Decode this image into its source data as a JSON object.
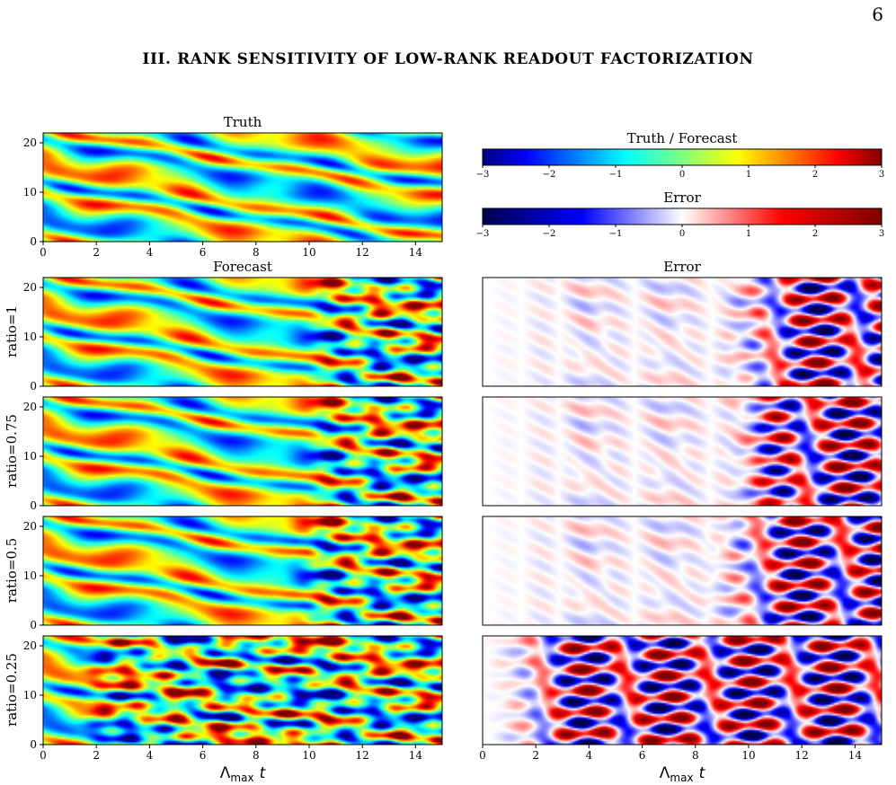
{
  "page_number": "6",
  "section_heading": "III.   RANK SENSITIVITY OF LOW-RANK READOUT FACTORIZATION",
  "figure": {
    "titles": {
      "truth": "Truth",
      "forecast": "Forecast",
      "error": "Error",
      "colorbar_tf": "Truth / Forecast",
      "colorbar_err": "Error"
    },
    "row_labels": [
      "ratio=1",
      "ratio=0.75",
      "ratio=0.5",
      "ratio=0.25"
    ],
    "xlabel": {
      "base": "Λ",
      "sub": "max",
      "var": "t"
    },
    "x_ticks": [
      0,
      2,
      4,
      6,
      8,
      10,
      12,
      14
    ],
    "y_ticks": [
      0,
      10,
      20
    ],
    "colorbar_ticks": [
      -3,
      -2,
      -1,
      0,
      1,
      2,
      3
    ],
    "colormaps": {
      "truth_forecast": "jet",
      "error": "seismic"
    }
  },
  "chart_data": [
    {
      "type": "heatmap",
      "panel": "Truth",
      "xlim": [
        0,
        15
      ],
      "ylim": [
        0,
        22
      ],
      "clim": [
        -3,
        3
      ]
    },
    {
      "type": "heatmap",
      "panel": "Forecast",
      "row": "ratio=1",
      "xlim": [
        0,
        15
      ],
      "ylim": [
        0,
        22
      ],
      "clim": [
        -3,
        3
      ]
    },
    {
      "type": "heatmap",
      "panel": "Error",
      "row": "ratio=1",
      "xlim": [
        0,
        15
      ],
      "ylim": [
        0,
        22
      ],
      "clim": [
        -3,
        3
      ],
      "large_error_from_t": 10.5
    },
    {
      "type": "heatmap",
      "panel": "Forecast",
      "row": "ratio=0.75",
      "xlim": [
        0,
        15
      ],
      "ylim": [
        0,
        22
      ],
      "clim": [
        -3,
        3
      ]
    },
    {
      "type": "heatmap",
      "panel": "Error",
      "row": "ratio=0.75",
      "xlim": [
        0,
        15
      ],
      "ylim": [
        0,
        22
      ],
      "clim": [
        -3,
        3
      ],
      "large_error_from_t": 10.5
    },
    {
      "type": "heatmap",
      "panel": "Forecast",
      "row": "ratio=0.5",
      "xlim": [
        0,
        15
      ],
      "ylim": [
        0,
        22
      ],
      "clim": [
        -3,
        3
      ]
    },
    {
      "type": "heatmap",
      "panel": "Error",
      "row": "ratio=0.5",
      "xlim": [
        0,
        15
      ],
      "ylim": [
        0,
        22
      ],
      "clim": [
        -3,
        3
      ],
      "large_error_from_t": 10.0
    },
    {
      "type": "heatmap",
      "panel": "Forecast",
      "row": "ratio=0.25",
      "xlim": [
        0,
        15
      ],
      "ylim": [
        0,
        22
      ],
      "clim": [
        -3,
        3
      ]
    },
    {
      "type": "heatmap",
      "panel": "Error",
      "row": "ratio=0.25",
      "xlim": [
        0,
        15
      ],
      "ylim": [
        0,
        22
      ],
      "clim": [
        -3,
        3
      ],
      "large_error_from_t": 2.0
    }
  ]
}
